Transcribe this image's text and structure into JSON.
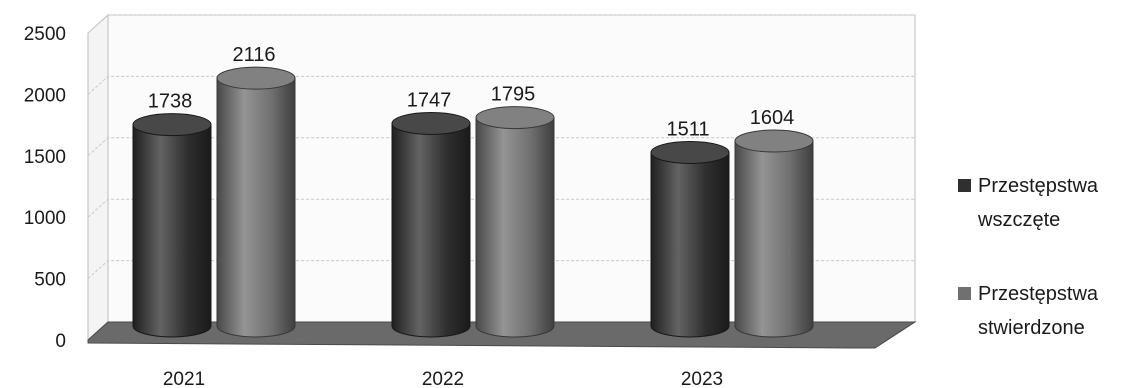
{
  "chart_data": {
    "type": "bar",
    "categories": [
      "2021",
      "2022",
      "2023"
    ],
    "series": [
      {
        "name": "Przestępstwa wszczęte",
        "name_lines": [
          "Przestępstwa",
          "wszczęte"
        ],
        "values": [
          1738,
          1747,
          1511
        ],
        "color": "#2f2f2f"
      },
      {
        "name": "Przestępstwa stwierdzone",
        "name_lines": [
          "Przestępstwa",
          "stwierdzone"
        ],
        "values": [
          2116,
          1795,
          1604
        ],
        "color": "#707070"
      }
    ],
    "yticks": [
      "0",
      "500",
      "1000",
      "1500",
      "2000",
      "2500"
    ],
    "ylim": [
      0,
      2500
    ],
    "title": "",
    "xlabel": "",
    "ylabel": "",
    "grid": true,
    "legend_position": "right",
    "style": "3d-cylinder"
  }
}
